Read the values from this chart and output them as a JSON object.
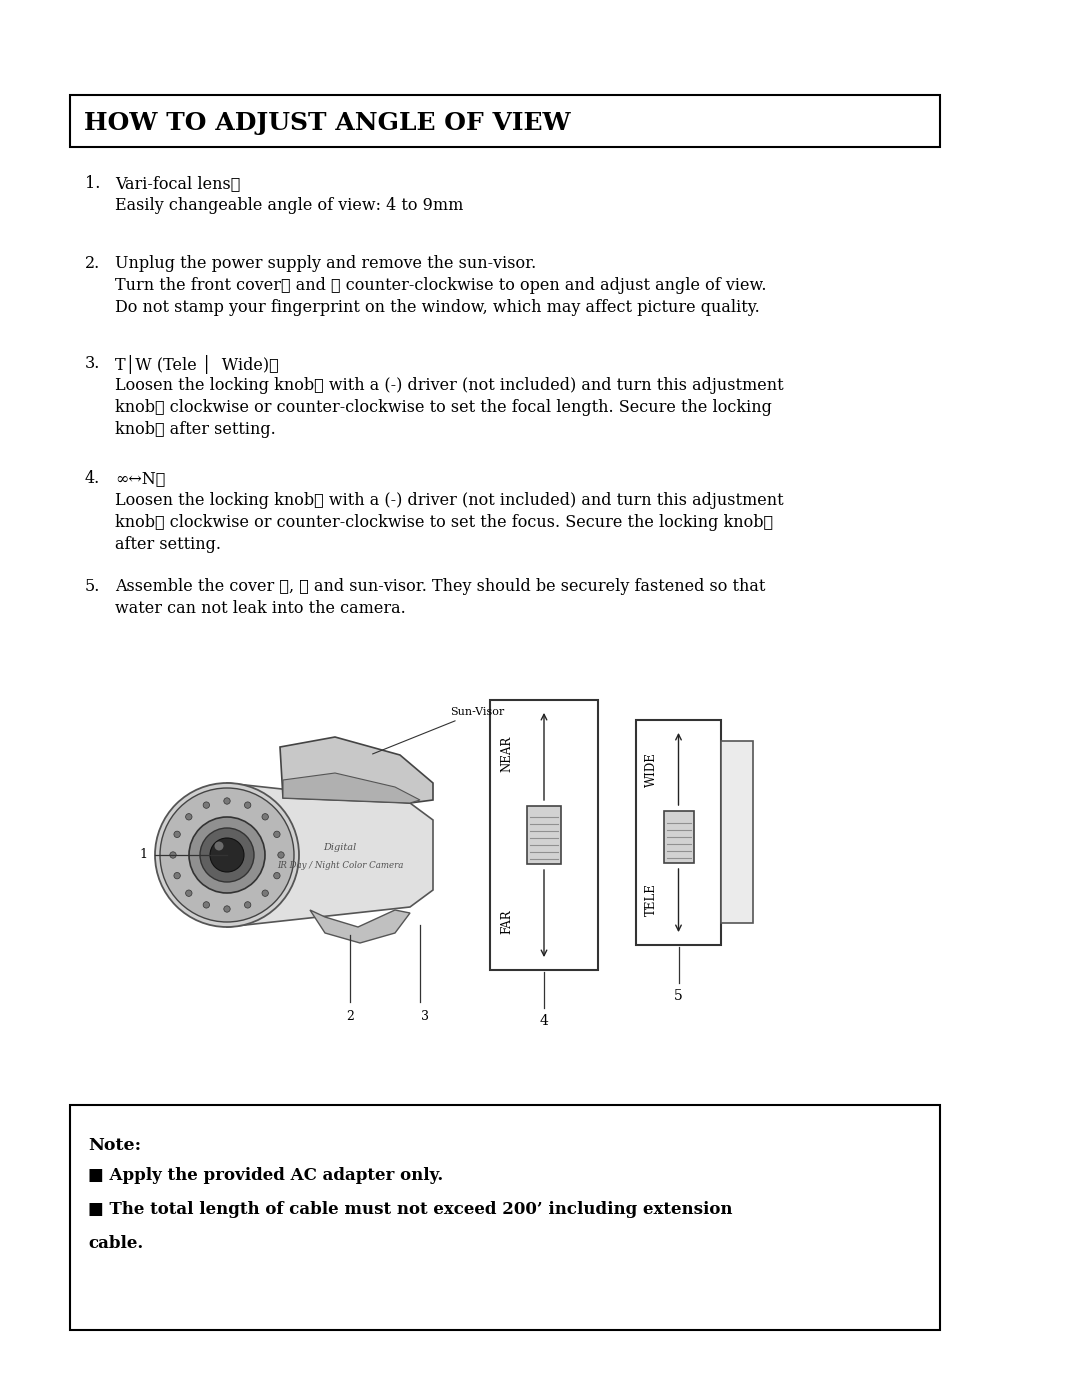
{
  "title": "HOW TO ADJUST ANGLE OF VIEW",
  "bg_color": "#ffffff",
  "border_color": "#000000",
  "title_fontsize": 18,
  "body_fontsize": 11.5,
  "items": [
    {
      "num": "1.",
      "heading": "Vari-focal lens①",
      "body": "Easily changeable angle of view: 4 to 9mm"
    },
    {
      "num": "2.",
      "heading": "Unplug the power supply and remove the sun-visor.",
      "body": "Turn the front cover② and ③ counter-clockwise to open and adjust angle of view.\nDo not stamp your fingerprint on the window, which may affect picture quality."
    },
    {
      "num": "3.",
      "heading": "T│W (Tele │  Wide)⑥",
      "body": "Loosen the locking knob⑥ with a (-) driver (not included) and turn this adjustment\nknob⑥ clockwise or counter-clockwise to set the focal length. Secure the locking\nknob⑥ after setting."
    },
    {
      "num": "4.",
      "heading": "∞↔N④",
      "body": "Loosen the locking knob④ with a (-) driver (not included) and turn this adjustment\nknob④ clockwise or counter-clockwise to set the focus. Secure the locking knob④\nafter setting."
    },
    {
      "num": "5.",
      "heading": "",
      "body": "Assemble the cover ③, ② and sun-visor. They should be securely fastened so that\nwater can not leak into the camera."
    }
  ],
  "note_title": "Note:",
  "note_lines": [
    "■ Apply the provided AC adapter only.",
    "■ The total length of cable must not exceed 200’ including extension\ncable."
  ],
  "diagram_labels_cam": [
    "Sun-Visor",
    "1",
    "2",
    "3",
    "Digital\nIR Day / Night Color Camera"
  ],
  "diagram_labels_knob": [
    "FAR",
    "NEAR",
    "WIDE",
    "TELE",
    "4",
    "5"
  ]
}
